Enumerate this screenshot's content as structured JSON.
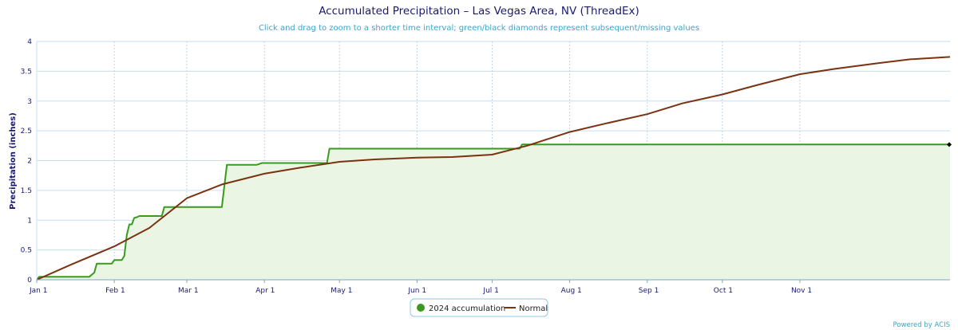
{
  "chart_data": {
    "type": "area",
    "title": "Accumulated Precipitation – Las Vegas Area, NV (ThreadEx)",
    "subtitle": "Click and drag to zoom to a shorter time interval; green/black diamonds represent subsequent/missing values",
    "ylabel": "Precipitation (inches)",
    "xlabel": "",
    "xlim": [
      "2024-01-01",
      "2024-12-31"
    ],
    "ylim": [
      0,
      4
    ],
    "x_ticks": [
      "Jan 1",
      "Feb 1",
      "Mar 1",
      "Apr 1",
      "May 1",
      "Jun 1",
      "Jul 1",
      "Aug 1",
      "Sep 1",
      "Oct 1",
      "Nov 1"
    ],
    "x_tick_dates": [
      "2024-01-01",
      "2024-02-01",
      "2024-03-01",
      "2024-04-01",
      "2024-05-01",
      "2024-06-01",
      "2024-07-01",
      "2024-08-01",
      "2024-09-01",
      "2024-10-01",
      "2024-11-01"
    ],
    "y_ticks": [
      "0",
      "0.5",
      "1",
      "1.5",
      "2",
      "2.5",
      "3",
      "3.5",
      "4"
    ],
    "grid": true,
    "legend_position": "bottom-center",
    "series": [
      {
        "name": "2024 accumulation",
        "color": "#3a9a1e",
        "fill": "#eaf5e3",
        "style": "step-area",
        "points": [
          [
            "2024-01-01",
            0.0
          ],
          [
            "2024-01-02",
            0.05
          ],
          [
            "2024-01-22",
            0.05
          ],
          [
            "2024-01-24",
            0.12
          ],
          [
            "2024-01-25",
            0.27
          ],
          [
            "2024-01-31",
            0.27
          ],
          [
            "2024-02-01",
            0.33
          ],
          [
            "2024-02-04",
            0.33
          ],
          [
            "2024-02-05",
            0.4
          ],
          [
            "2024-02-06",
            0.75
          ],
          [
            "2024-02-07",
            0.93
          ],
          [
            "2024-02-08",
            0.93
          ],
          [
            "2024-02-09",
            1.04
          ],
          [
            "2024-02-10",
            1.05
          ],
          [
            "2024-02-11",
            1.07
          ],
          [
            "2024-02-20",
            1.07
          ],
          [
            "2024-02-21",
            1.22
          ],
          [
            "2024-03-15",
            1.22
          ],
          [
            "2024-03-17",
            1.93
          ],
          [
            "2024-03-29",
            1.93
          ],
          [
            "2024-03-31",
            1.96
          ],
          [
            "2024-04-26",
            1.96
          ],
          [
            "2024-04-27",
            2.2
          ],
          [
            "2024-07-12",
            2.2
          ],
          [
            "2024-07-13",
            2.27
          ],
          [
            "2024-12-31",
            2.27
          ]
        ],
        "last_value_marker": "diamond"
      },
      {
        "name": "Normal",
        "color": "#7a3210",
        "style": "line",
        "points": [
          [
            "2024-01-01",
            0.0
          ],
          [
            "2024-01-15",
            0.26
          ],
          [
            "2024-02-01",
            0.56
          ],
          [
            "2024-02-15",
            0.87
          ],
          [
            "2024-03-01",
            1.37
          ],
          [
            "2024-03-15",
            1.6
          ],
          [
            "2024-04-01",
            1.78
          ],
          [
            "2024-04-15",
            1.88
          ],
          [
            "2024-05-01",
            1.98
          ],
          [
            "2024-05-15",
            2.02
          ],
          [
            "2024-06-01",
            2.05
          ],
          [
            "2024-06-15",
            2.06
          ],
          [
            "2024-07-01",
            2.1
          ],
          [
            "2024-07-15",
            2.25
          ],
          [
            "2024-08-01",
            2.48
          ],
          [
            "2024-08-15",
            2.62
          ],
          [
            "2024-09-01",
            2.78
          ],
          [
            "2024-09-15",
            2.96
          ],
          [
            "2024-10-01",
            3.11
          ],
          [
            "2024-10-15",
            3.27
          ],
          [
            "2024-11-01",
            3.45
          ],
          [
            "2024-11-15",
            3.54
          ],
          [
            "2024-12-01",
            3.63
          ],
          [
            "2024-12-15",
            3.7
          ],
          [
            "2024-12-31",
            3.74
          ]
        ]
      }
    ],
    "credit": "Powered by ACIS"
  }
}
